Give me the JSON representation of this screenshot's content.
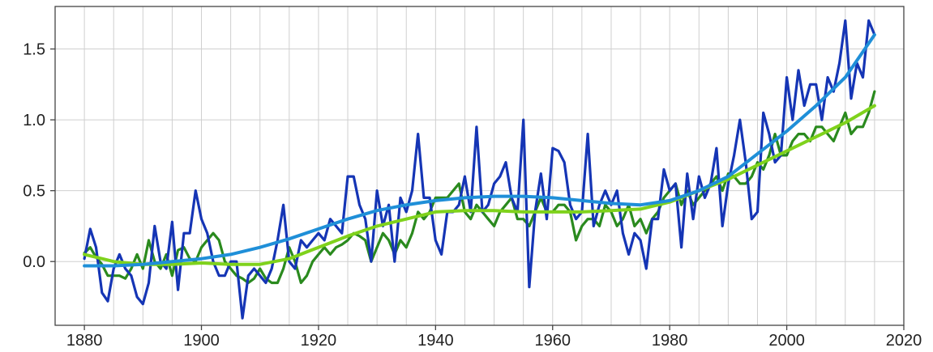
{
  "chart_data": {
    "type": "line",
    "title": "",
    "xlabel": "",
    "ylabel": "",
    "xlim": [
      1875,
      2020
    ],
    "ylim": [
      -0.45,
      1.8
    ],
    "grid": true,
    "legend": "none",
    "x_ticks": [
      1880,
      1900,
      1920,
      1940,
      1960,
      1980,
      2000,
      2020
    ],
    "x_tick_labels": [
      "1880",
      "1900",
      "1920",
      "1940",
      "1960",
      "1980",
      "2000",
      "2020"
    ],
    "y_ticks": [
      0.0,
      0.5,
      1.0,
      1.5
    ],
    "y_tick_labels": [
      "0.0",
      "0.5",
      "1.0",
      "1.5"
    ],
    "series": [
      {
        "color": "#2a8a1e",
        "style": "annual",
        "x": [
          1880,
          1881,
          1882,
          1883,
          1884,
          1885,
          1886,
          1887,
          1888,
          1889,
          1890,
          1891,
          1892,
          1893,
          1894,
          1895,
          1896,
          1897,
          1898,
          1899,
          1900,
          1901,
          1902,
          1903,
          1904,
          1905,
          1906,
          1907,
          1908,
          1909,
          1910,
          1911,
          1912,
          1913,
          1914,
          1915,
          1916,
          1917,
          1918,
          1919,
          1920,
          1921,
          1922,
          1923,
          1924,
          1925,
          1926,
          1927,
          1928,
          1929,
          1930,
          1931,
          1932,
          1933,
          1934,
          1935,
          1936,
          1937,
          1938,
          1939,
          1940,
          1941,
          1942,
          1943,
          1944,
          1945,
          1946,
          1947,
          1948,
          1949,
          1950,
          1951,
          1952,
          1953,
          1954,
          1955,
          1956,
          1957,
          1958,
          1959,
          1960,
          1961,
          1962,
          1963,
          1964,
          1965,
          1966,
          1967,
          1968,
          1969,
          1970,
          1971,
          1972,
          1973,
          1974,
          1975,
          1976,
          1977,
          1978,
          1979,
          1980,
          1981,
          1982,
          1983,
          1984,
          1985,
          1986,
          1987,
          1988,
          1989,
          1990,
          1991,
          1992,
          1993,
          1994,
          1995,
          1996,
          1997,
          1998,
          1999,
          2000,
          2001,
          2002,
          2003,
          2004,
          2005,
          2006,
          2007,
          2008,
          2009,
          2010,
          2011,
          2012,
          2013,
          2014,
          2015
        ],
        "y": [
          0.06,
          0.1,
          0.03,
          -0.02,
          -0.1,
          -0.1,
          -0.1,
          -0.12,
          -0.05,
          0.05,
          -0.05,
          0.15,
          0.0,
          -0.05,
          0.05,
          -0.1,
          0.08,
          0.1,
          0.02,
          0.0,
          0.1,
          0.15,
          0.2,
          0.15,
          0.0,
          -0.05,
          -0.1,
          -0.12,
          -0.15,
          -0.12,
          -0.05,
          -0.12,
          -0.15,
          -0.15,
          -0.05,
          0.1,
          0.0,
          -0.15,
          -0.1,
          0.0,
          0.05,
          0.1,
          0.05,
          0.1,
          0.12,
          0.15,
          0.2,
          0.18,
          0.15,
          0.0,
          0.1,
          0.2,
          0.15,
          0.05,
          0.15,
          0.1,
          0.2,
          0.35,
          0.3,
          0.35,
          0.45,
          0.45,
          0.45,
          0.5,
          0.55,
          0.35,
          0.3,
          0.4,
          0.35,
          0.3,
          0.25,
          0.35,
          0.4,
          0.45,
          0.3,
          0.3,
          0.25,
          0.35,
          0.45,
          0.35,
          0.35,
          0.4,
          0.4,
          0.35,
          0.15,
          0.25,
          0.3,
          0.3,
          0.25,
          0.4,
          0.35,
          0.25,
          0.3,
          0.4,
          0.25,
          0.3,
          0.2,
          0.3,
          0.35,
          0.45,
          0.5,
          0.55,
          0.4,
          0.5,
          0.4,
          0.45,
          0.5,
          0.55,
          0.6,
          0.5,
          0.62,
          0.6,
          0.55,
          0.55,
          0.6,
          0.7,
          0.65,
          0.75,
          0.9,
          0.75,
          0.75,
          0.85,
          0.9,
          0.9,
          0.85,
          0.95,
          0.95,
          0.9,
          0.85,
          0.95,
          1.05,
          0.9,
          0.95,
          0.95,
          1.05,
          1.2
        ]
      },
      {
        "color": "#1535b5",
        "style": "annual",
        "x": [
          1880,
          1881,
          1882,
          1883,
          1884,
          1885,
          1886,
          1887,
          1888,
          1889,
          1890,
          1891,
          1892,
          1893,
          1894,
          1895,
          1896,
          1897,
          1898,
          1899,
          1900,
          1901,
          1902,
          1903,
          1904,
          1905,
          1906,
          1907,
          1908,
          1909,
          1910,
          1911,
          1912,
          1913,
          1914,
          1915,
          1916,
          1917,
          1918,
          1919,
          1920,
          1921,
          1922,
          1923,
          1924,
          1925,
          1926,
          1927,
          1928,
          1929,
          1930,
          1931,
          1932,
          1933,
          1934,
          1935,
          1936,
          1937,
          1938,
          1939,
          1940,
          1941,
          1942,
          1943,
          1944,
          1945,
          1946,
          1947,
          1948,
          1949,
          1950,
          1951,
          1952,
          1953,
          1954,
          1955,
          1956,
          1957,
          1958,
          1959,
          1960,
          1961,
          1962,
          1963,
          1964,
          1965,
          1966,
          1967,
          1968,
          1969,
          1970,
          1971,
          1972,
          1973,
          1974,
          1975,
          1976,
          1977,
          1978,
          1979,
          1980,
          1981,
          1982,
          1983,
          1984,
          1985,
          1986,
          1987,
          1988,
          1989,
          1990,
          1991,
          1992,
          1993,
          1994,
          1995,
          1996,
          1997,
          1998,
          1999,
          2000,
          2001,
          2002,
          2003,
          2004,
          2005,
          2006,
          2007,
          2008,
          2009,
          2010,
          2011,
          2012,
          2013,
          2014,
          2015
        ],
        "y": [
          0.02,
          0.23,
          0.1,
          -0.22,
          -0.28,
          -0.05,
          0.05,
          -0.05,
          -0.1,
          -0.25,
          -0.3,
          -0.15,
          0.25,
          0.0,
          -0.05,
          0.28,
          -0.2,
          0.2,
          0.2,
          0.5,
          0.3,
          0.2,
          0.0,
          -0.1,
          -0.1,
          0.0,
          0.0,
          -0.4,
          -0.1,
          -0.05,
          -0.1,
          -0.15,
          -0.05,
          0.15,
          0.4,
          0.0,
          -0.05,
          0.15,
          0.1,
          0.15,
          0.2,
          0.15,
          0.3,
          0.25,
          0.2,
          0.6,
          0.6,
          0.4,
          0.3,
          0.0,
          0.5,
          0.25,
          0.4,
          0.0,
          0.45,
          0.35,
          0.5,
          0.9,
          0.45,
          0.45,
          0.15,
          0.05,
          0.35,
          0.35,
          0.4,
          0.6,
          0.35,
          0.95,
          0.35,
          0.4,
          0.55,
          0.6,
          0.7,
          0.45,
          0.35,
          1.0,
          -0.18,
          0.35,
          0.62,
          0.3,
          0.8,
          0.78,
          0.7,
          0.4,
          0.3,
          0.35,
          0.9,
          0.25,
          0.4,
          0.5,
          0.4,
          0.5,
          0.2,
          0.05,
          0.2,
          0.15,
          -0.05,
          0.3,
          0.3,
          0.65,
          0.5,
          0.55,
          0.1,
          0.62,
          0.3,
          0.6,
          0.45,
          0.55,
          0.8,
          0.25,
          0.55,
          0.75,
          1.0,
          0.7,
          0.3,
          0.35,
          1.05,
          0.9,
          0.7,
          0.75,
          1.3,
          1.0,
          1.35,
          1.1,
          1.25,
          1.25,
          1.0,
          1.3,
          1.2,
          1.4,
          1.7,
          1.15,
          1.4,
          1.3,
          1.7,
          1.6
        ]
      },
      {
        "color": "#7fd21c",
        "style": "smoothed",
        "x": [
          1880,
          1885,
          1890,
          1895,
          1900,
          1905,
          1910,
          1915,
          1920,
          1925,
          1930,
          1935,
          1940,
          1945,
          1950,
          1955,
          1960,
          1965,
          1970,
          1975,
          1980,
          1985,
          1990,
          1995,
          2000,
          2005,
          2010,
          2015
        ],
        "y": [
          0.05,
          0.0,
          -0.02,
          -0.02,
          -0.01,
          -0.02,
          -0.02,
          0.02,
          0.1,
          0.18,
          0.25,
          0.3,
          0.35,
          0.36,
          0.36,
          0.35,
          0.35,
          0.35,
          0.36,
          0.37,
          0.42,
          0.5,
          0.58,
          0.68,
          0.78,
          0.88,
          0.98,
          1.1
        ]
      },
      {
        "color": "#1f8fd8",
        "style": "smoothed",
        "x": [
          1880,
          1885,
          1890,
          1895,
          1900,
          1905,
          1910,
          1915,
          1920,
          1925,
          1930,
          1935,
          1940,
          1945,
          1950,
          1955,
          1960,
          1965,
          1970,
          1975,
          1980,
          1985,
          1990,
          1995,
          2000,
          2005,
          2010,
          2015
        ],
        "y": [
          -0.03,
          -0.03,
          -0.02,
          0.0,
          0.02,
          0.05,
          0.1,
          0.16,
          0.23,
          0.3,
          0.36,
          0.4,
          0.43,
          0.45,
          0.46,
          0.46,
          0.45,
          0.43,
          0.41,
          0.4,
          0.43,
          0.5,
          0.6,
          0.76,
          0.92,
          1.1,
          1.3,
          1.6
        ]
      }
    ]
  }
}
